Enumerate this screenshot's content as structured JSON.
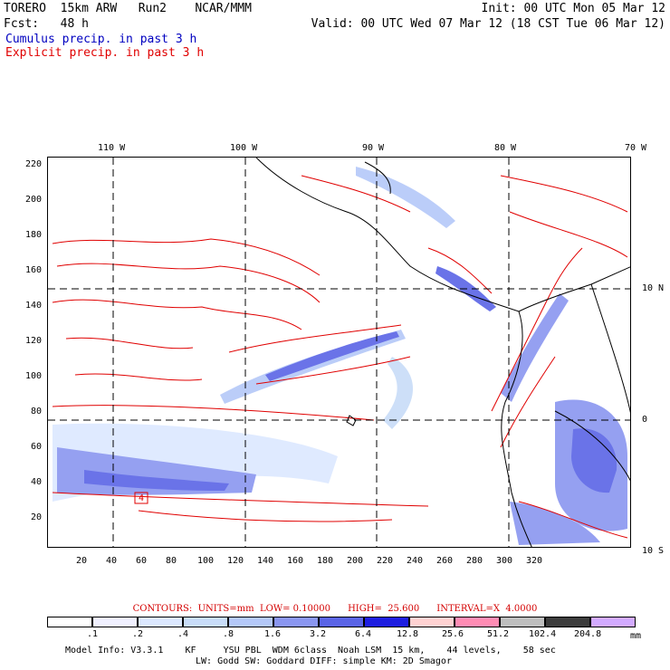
{
  "header": {
    "model": "TORERO  15km ARW   Run2    NCAR/MMM",
    "init": "Init: 00 UTC Mon 05 Mar 12",
    "fcst_label": "Fcst:   48 h",
    "valid": "Valid: 00 UTC Wed 07 Mar 12 (18 CST Tue 06 Mar 12)",
    "field_cumulus": "Cumulus precip. in past 3 h",
    "field_explicit": "Explicit precip. in past 3 h",
    "colors": {
      "cumulus": "#0000c0",
      "explicit": "#e00000"
    }
  },
  "map": {
    "lon_labels": [
      "110 W",
      "100 W",
      "90 W",
      "80 W",
      "70 W"
    ],
    "lat_labels": [
      "10 N",
      "0",
      "10 S"
    ],
    "y_ticks": [
      "220",
      "200",
      "180",
      "160",
      "140",
      "120",
      "100",
      "80",
      "60",
      "40",
      "20"
    ],
    "x_ticks": [
      "20",
      "40",
      "60",
      "80",
      "100",
      "120",
      "140",
      "160",
      "180",
      "200",
      "220",
      "240",
      "260",
      "280",
      "300",
      "320"
    ],
    "station_marker": "4"
  },
  "contours": {
    "text": "CONTOURS:  UNITS=mm  LOW= 0.10000      HIGH=  25.600      INTERVAL=X  4.0000"
  },
  "legend": {
    "labels": [
      ".1",
      ".2",
      ".4",
      ".8",
      "1.6",
      "3.2",
      "6.4",
      "12.8",
      "25.6",
      "51.2",
      "102.4",
      "204.8"
    ],
    "unit": "mm",
    "colors": [
      "#ffffff",
      "#f0f0ff",
      "#dce8ff",
      "#c8dcf8",
      "#b4c8f8",
      "#8a96f0",
      "#5a64e6",
      "#1e1ee0",
      "#ffd2d2",
      "#ff8cb4",
      "#bebebe",
      "#3c3c3c",
      "#d2aaff"
    ]
  },
  "footer": {
    "line1": "Model Info: V3.3.1    KF     YSU PBL  WDM 6class  Noah LSM  15 km,    44 levels,    58 sec",
    "line2": "LW: Godd SW: Goddard DIFF: simple KM: 2D Smagor"
  }
}
